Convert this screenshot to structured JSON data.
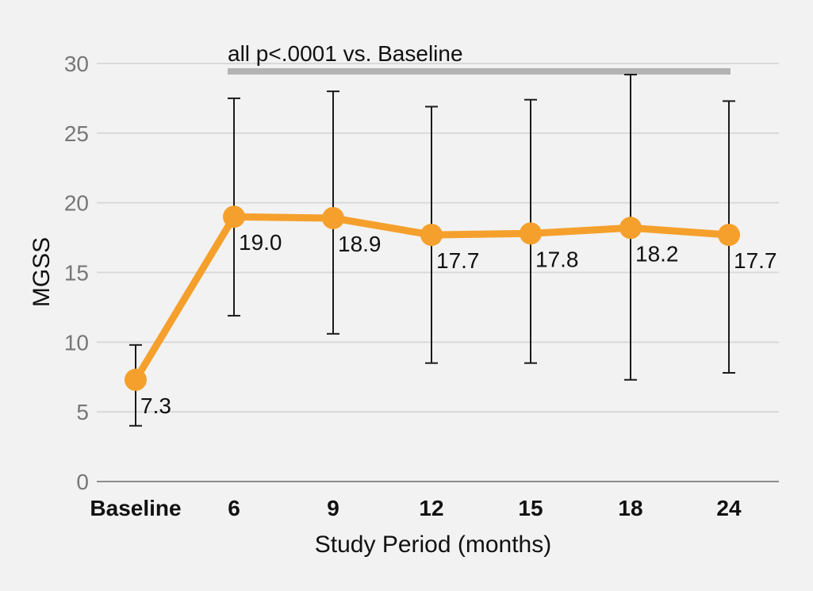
{
  "chart_data": {
    "type": "line",
    "categories": [
      "Baseline",
      "6",
      "9",
      "12",
      "15",
      "18",
      "24"
    ],
    "values": [
      7.3,
      19.0,
      18.9,
      17.7,
      17.8,
      18.2,
      17.7
    ],
    "error_bars": {
      "upper": [
        9.8,
        27.5,
        28.0,
        26.9,
        27.4,
        29.2,
        27.3
      ],
      "lower": [
        4.0,
        11.9,
        10.6,
        8.5,
        8.5,
        7.3,
        7.8
      ]
    },
    "data_labels": [
      "7.3",
      "19.0",
      "18.9",
      "17.7",
      "17.8",
      "18.2",
      "17.7"
    ],
    "xlabel": "Study Period (months)",
    "ylabel": "MGSS",
    "ylim": [
      0,
      30
    ],
    "yticks": [
      "0",
      "5",
      "10",
      "15",
      "20",
      "25",
      "30"
    ],
    "annotation": "all p<.0001 vs. Baseline",
    "annotation_span": [
      "6",
      "24"
    ],
    "grid": true,
    "line_color": "#f5a02c",
    "grid_color": "#d9d9d9",
    "annotation_bar_color": "#b3b3b3"
  }
}
